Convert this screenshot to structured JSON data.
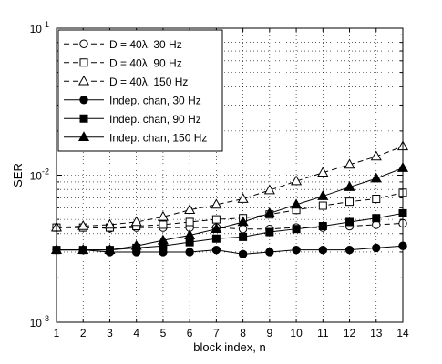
{
  "chart_data": {
    "type": "line",
    "title": "",
    "xlabel": "block index, n",
    "ylabel": "SER",
    "x": [
      1,
      2,
      3,
      4,
      5,
      6,
      7,
      8,
      9,
      10,
      11,
      12,
      13,
      14
    ],
    "xlim": [
      1,
      14
    ],
    "ylim": [
      0.001,
      0.1
    ],
    "yscale": "log",
    "grid": true,
    "legend_position": "top-left",
    "x_tick_labels": [
      "1",
      "2",
      "3",
      "4",
      "5",
      "6",
      "7",
      "8",
      "9",
      "10",
      "11",
      "12",
      "13",
      "14"
    ],
    "y_ticks": [
      {
        "value": 0.001,
        "base": "10",
        "exp": "-3"
      },
      {
        "value": 0.01,
        "base": "10",
        "exp": "-2"
      },
      {
        "value": 0.1,
        "base": "10",
        "exp": "-1"
      }
    ],
    "series": [
      {
        "name": "D = 40λ, 30 Hz",
        "marker": "circle-open",
        "dash": "dashed",
        "values": [
          0.0044,
          0.0044,
          0.00435,
          0.0044,
          0.0044,
          0.0044,
          0.0044,
          0.0043,
          0.0043,
          0.0044,
          0.0044,
          0.0045,
          0.0046,
          0.0047
        ]
      },
      {
        "name": "D = 40λ, 90 Hz",
        "marker": "square-open",
        "dash": "dashed",
        "values": [
          0.0044,
          0.0044,
          0.0044,
          0.0045,
          0.0046,
          0.0048,
          0.005,
          0.0051,
          0.0054,
          0.0058,
          0.0062,
          0.0066,
          0.0069,
          0.0076
        ]
      },
      {
        "name": "D = 40λ, 150 Hz",
        "marker": "triangle-open",
        "dash": "dashed",
        "values": [
          0.0044,
          0.0045,
          0.0046,
          0.0048,
          0.0052,
          0.0058,
          0.0063,
          0.0069,
          0.0079,
          0.0091,
          0.0104,
          0.0118,
          0.0134,
          0.0157
        ]
      },
      {
        "name": "Indep. chan, 30 Hz",
        "marker": "circle-filled",
        "dash": "solid",
        "values": [
          0.0031,
          0.0031,
          0.003,
          0.003,
          0.003,
          0.003,
          0.0031,
          0.0029,
          0.003,
          0.0031,
          0.0031,
          0.0031,
          0.0032,
          0.0033
        ]
      },
      {
        "name": "Indep. chan, 90 Hz",
        "marker": "square-filled",
        "dash": "solid",
        "values": [
          0.0031,
          0.0031,
          0.0031,
          0.0032,
          0.0033,
          0.0035,
          0.0037,
          0.0038,
          0.0041,
          0.0043,
          0.0045,
          0.0048,
          0.0051,
          0.0055
        ]
      },
      {
        "name": "Indep. chan, 150 Hz",
        "marker": "triangle-filled",
        "dash": "solid",
        "values": [
          0.0031,
          0.0031,
          0.0031,
          0.0033,
          0.0036,
          0.0039,
          0.0043,
          0.0048,
          0.0055,
          0.0063,
          0.0072,
          0.0083,
          0.0095,
          0.0112
        ]
      }
    ]
  }
}
